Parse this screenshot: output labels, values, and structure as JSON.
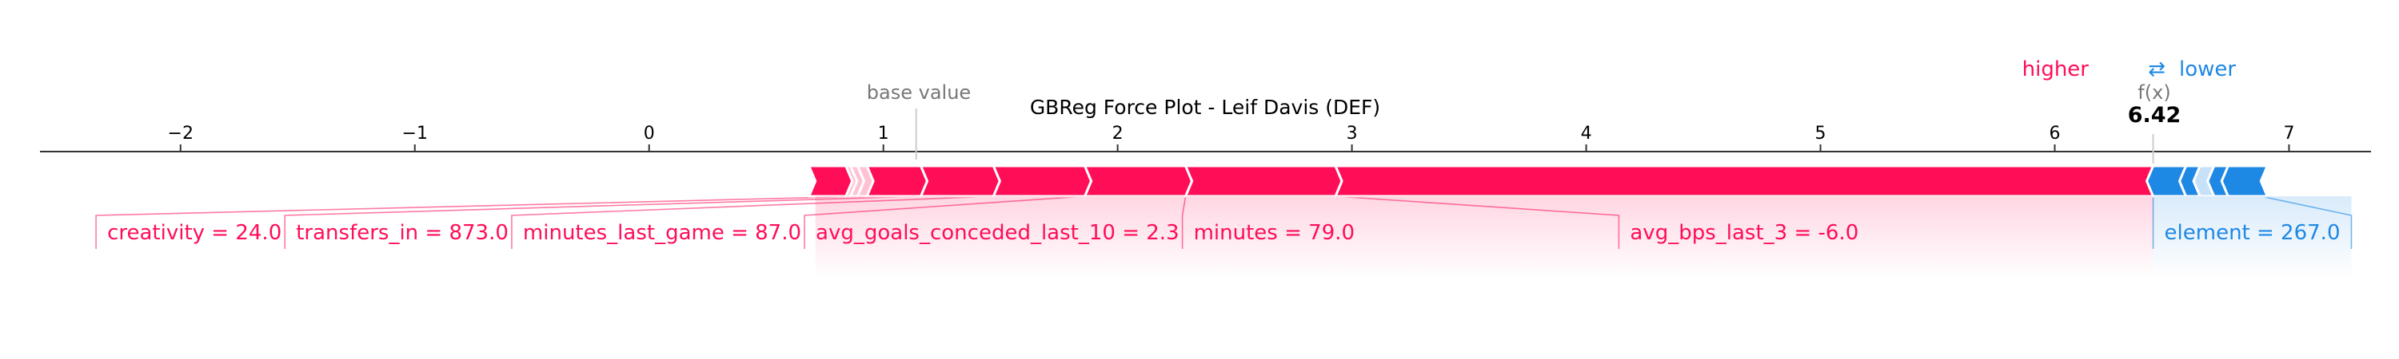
{
  "chart_data": {
    "type": "force_plot",
    "title": "GBReg Force Plot - Leif Davis (DEF)",
    "base_value_label": "base value",
    "base_value": 1.14,
    "fx_label": "f(x)",
    "fx_value": 6.42,
    "fx_value_label": "6.42",
    "legend": {
      "higher": "higher",
      "arrow": "⇄",
      "lower": "lower"
    },
    "colors": {
      "positive": "#ff0d57",
      "negative": "#1e88e5",
      "axis": "#333333",
      "muted": "#777777"
    },
    "xlim": [
      -2.6,
      7.35
    ],
    "ticks": [
      -2,
      -1,
      0,
      1,
      2,
      3,
      4,
      5,
      6,
      7
    ],
    "tick_labels": [
      "−2",
      "−1",
      "0",
      "1",
      "2",
      "3",
      "4",
      "5",
      "6",
      "7"
    ],
    "positive_features": [
      {
        "label": "avg_bps_last_3 = -6.0",
        "start": 2.93,
        "end": 6.42
      },
      {
        "label": "minutes = 79.0",
        "start": 2.29,
        "end": 2.93
      },
      {
        "label": "avg_goals_conceded_last_10 = 2.3",
        "start": 1.86,
        "end": 2.29
      },
      {
        "label": "minutes_last_game = 87.0",
        "start": 1.47,
        "end": 1.86
      },
      {
        "label": "transfers_in = 873.0",
        "start": 1.16,
        "end": 1.47
      },
      {
        "label": "creativity = 24.0",
        "start": 0.93,
        "end": 1.16
      },
      {
        "label": "",
        "start": 0.89,
        "end": 0.93
      },
      {
        "label": "",
        "start": 0.86,
        "end": 0.89
      },
      {
        "label": "",
        "start": 0.84,
        "end": 0.86
      },
      {
        "label": "",
        "start": 0.71,
        "end": 0.84
      }
    ],
    "negative_features": [
      {
        "label": "element = 267.0",
        "start": 6.42,
        "end": 6.56
      },
      {
        "label": "",
        "start": 6.56,
        "end": 6.62
      },
      {
        "label": "",
        "start": 6.62,
        "end": 6.68
      },
      {
        "label": "",
        "start": 6.68,
        "end": 6.74
      },
      {
        "label": "",
        "start": 6.74,
        "end": 6.88
      }
    ]
  }
}
